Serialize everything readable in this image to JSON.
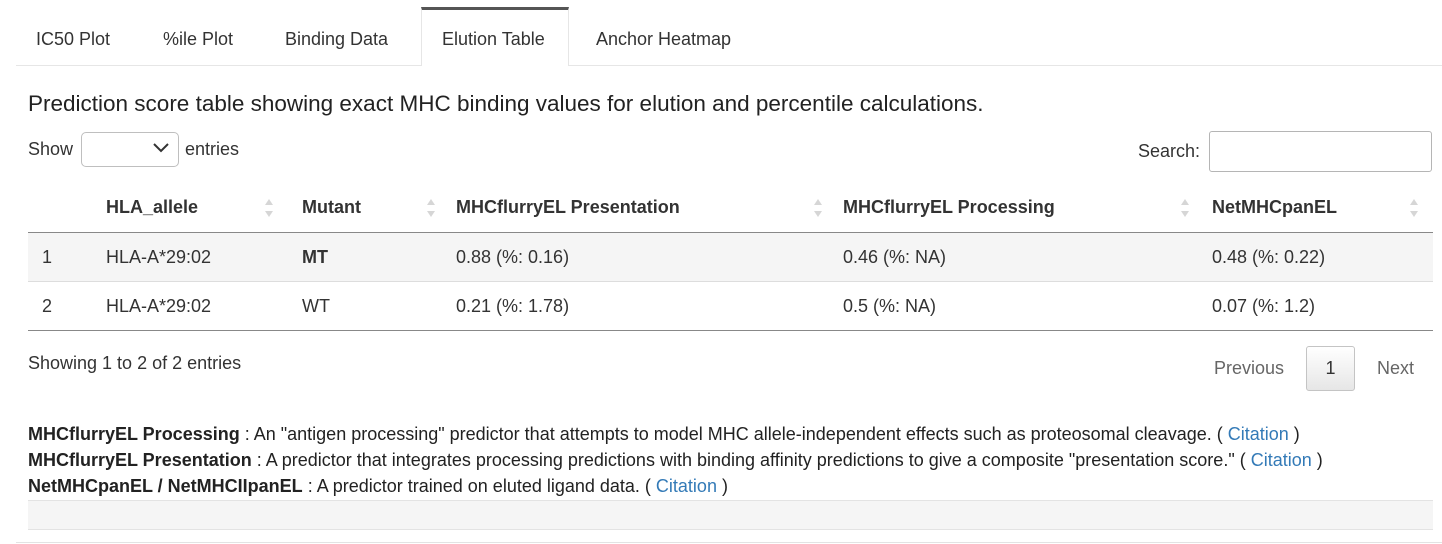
{
  "tabs": [
    {
      "label": "IC50 Plot",
      "active": false
    },
    {
      "label": "%ile Plot",
      "active": false
    },
    {
      "label": "Binding Data",
      "active": false
    },
    {
      "label": "Elution Table",
      "active": true
    },
    {
      "label": "Anchor Heatmap",
      "active": false
    }
  ],
  "description": "Prediction score table showing exact MHC binding values for elution and percentile calculations.",
  "length_menu": {
    "prefix": "Show",
    "suffix": "entries",
    "selected": ""
  },
  "search": {
    "label": "Search:",
    "value": ""
  },
  "table": {
    "columns": [
      "",
      "HLA_allele",
      "Mutant",
      "MHCflurryEL Presentation",
      "MHCflurryEL Processing",
      "NetMHCpanEL"
    ],
    "rows": [
      {
        "index": "1",
        "hla_allele": "HLA-A*29:02",
        "mutant": "MT",
        "presentation": "0.88 (%: 0.16)",
        "processing": "0.46 (%: NA)",
        "netmhcpanel": "0.48 (%: 0.22)"
      },
      {
        "index": "2",
        "hla_allele": "HLA-A*29:02",
        "mutant": "WT",
        "presentation": "0.21 (%: 1.78)",
        "processing": "0.5 (%: NA)",
        "netmhcpanel": "0.07 (%: 1.2)"
      }
    ]
  },
  "info": "Showing 1 to 2 of 2 entries",
  "pagination": {
    "previous": "Previous",
    "current": "1",
    "next": "Next"
  },
  "notes": [
    {
      "term": "MHCflurryEL Processing",
      "text": " : An \"antigen processing\" predictor that attempts to model MHC allele-independent effects such as proteosomal cleavage. ( ",
      "link": "Citation",
      "close": " )"
    },
    {
      "term": "MHCflurryEL Presentation",
      "text": " : A predictor that integrates processing predictions with binding affinity predictions to give a composite \"presentation score.\" ( ",
      "link": "Citation",
      "close": " )"
    },
    {
      "term": "NetMHCpanEL / NetMHCIIpanEL",
      "text": " : A predictor trained on eluted ligand data. ( ",
      "link": "Citation",
      "close": " )"
    }
  ],
  "colors": {
    "mutant_highlight": "#d9442b",
    "link": "#337ab7",
    "active_tab_border": "#555555"
  }
}
